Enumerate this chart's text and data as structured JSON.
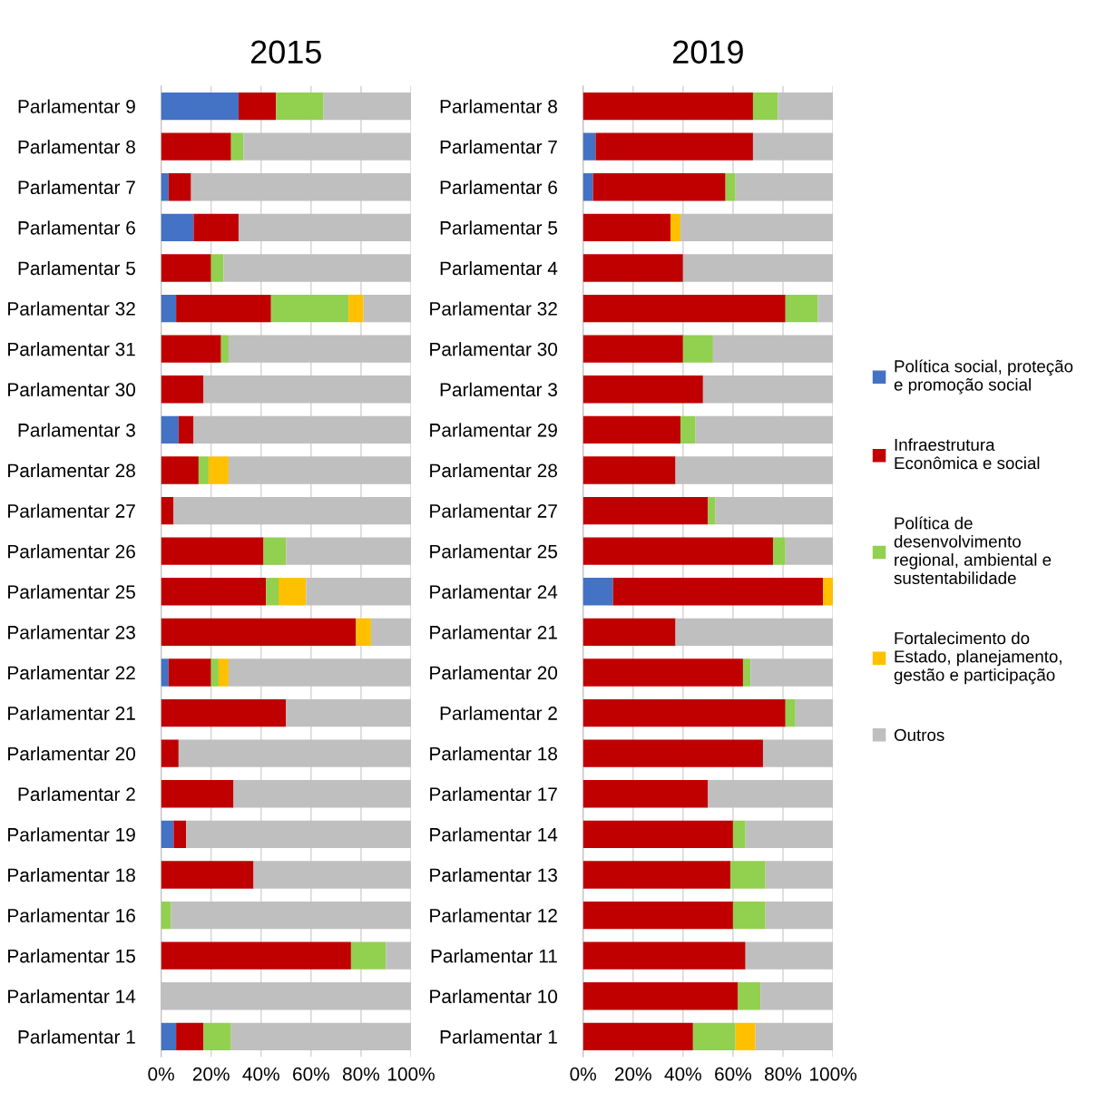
{
  "chart_data": [
    {
      "type": "bar",
      "orientation": "horizontal",
      "stacked": true,
      "title": "2015",
      "legend": false,
      "grid": "x",
      "categories": [
        "Parlamentar 9",
        "Parlamentar 8",
        "Parlamentar 7",
        "Parlamentar 6",
        "Parlamentar 5",
        "Parlamentar 32",
        "Parlamentar 31",
        "Parlamentar 30",
        "Parlamentar 3",
        "Parlamentar 28",
        "Parlamentar 27",
        "Parlamentar 26",
        "Parlamentar 25",
        "Parlamentar 23",
        "Parlamentar 22",
        "Parlamentar 21",
        "Parlamentar 20",
        "Parlamentar 2",
        "Parlamentar 19",
        "Parlamentar 18",
        "Parlamentar 16",
        "Parlamentar 15",
        "Parlamentar 14",
        "Parlamentar 1"
      ],
      "xlim": [
        0,
        100
      ],
      "xticks": [
        {
          "value": 0,
          "label": "0%"
        },
        {
          "value": 20,
          "label": "20%"
        },
        {
          "value": 40,
          "label": "40%"
        },
        {
          "value": 60,
          "label": "60%"
        },
        {
          "value": 80,
          "label": "80%"
        },
        {
          "value": 100,
          "label": "100%"
        }
      ],
      "series": [
        {
          "color": "#4472c4",
          "values": [
            31,
            null,
            3,
            13,
            null,
            6,
            null,
            null,
            7,
            null,
            null,
            null,
            null,
            null,
            3,
            null,
            null,
            null,
            5,
            null,
            null,
            null,
            null,
            6
          ]
        },
        {
          "color": "#c00000",
          "values": [
            15,
            28,
            9,
            18,
            20,
            38,
            24,
            17,
            6,
            15,
            5,
            41,
            42,
            78,
            17,
            50,
            7,
            29,
            5,
            37,
            null,
            76,
            null,
            11
          ]
        },
        {
          "color": "#92d050",
          "values": [
            19,
            5,
            null,
            null,
            5,
            31,
            3,
            null,
            null,
            4,
            null,
            9,
            5,
            null,
            3,
            null,
            null,
            null,
            null,
            null,
            4,
            14,
            null,
            11
          ]
        },
        {
          "color": "#ffc000",
          "values": [
            null,
            null,
            null,
            null,
            null,
            6,
            null,
            null,
            null,
            8,
            null,
            null,
            11,
            6,
            4,
            null,
            null,
            null,
            null,
            null,
            null,
            null,
            null,
            null
          ]
        },
        {
          "color": "#bfbfbf",
          "values": [
            35,
            67,
            88,
            69,
            75,
            19,
            73,
            83,
            87,
            73,
            95,
            50,
            42,
            16,
            73,
            50,
            93,
            71,
            90,
            63,
            96,
            10,
            100,
            72
          ]
        }
      ]
    },
    {
      "type": "bar",
      "orientation": "horizontal",
      "stacked": true,
      "title": "2019",
      "legend": "right",
      "grid": "x",
      "categories": [
        "Parlamentar 8",
        "Parlamentar 7",
        "Parlamentar 6",
        "Parlamentar 5",
        "Parlamentar 4",
        "Parlamentar 32",
        "Parlamentar 30",
        "Parlamentar 3",
        "Parlamentar 29",
        "Parlamentar 28",
        "Parlamentar 27",
        "Parlamentar 25",
        "Parlamentar 24",
        "Parlamentar 21",
        "Parlamentar 20",
        "Parlamentar 2",
        "Parlamentar 18",
        "Parlamentar 17",
        "Parlamentar 14",
        "Parlamentar 13",
        "Parlamentar 12",
        "Parlamentar 11",
        "Parlamentar 10",
        "Parlamentar 1"
      ],
      "xlim": [
        0,
        100
      ],
      "xticks": [
        {
          "value": 0,
          "label": "0%"
        },
        {
          "value": 20,
          "label": "20%"
        },
        {
          "value": 40,
          "label": "40%"
        },
        {
          "value": 60,
          "label": "60%"
        },
        {
          "value": 80,
          "label": "80%"
        },
        {
          "value": 100,
          "label": "100%"
        }
      ],
      "series": [
        {
          "name": "Política social, proteção\ne promoção social",
          "color": "#4472c4",
          "values": [
            null,
            5,
            4,
            null,
            null,
            null,
            null,
            null,
            null,
            null,
            null,
            null,
            12,
            null,
            null,
            null,
            null,
            null,
            null,
            null,
            null,
            null,
            null,
            null
          ]
        },
        {
          "name": "Infraestrutura\nEconômica e social",
          "color": "#c00000",
          "values": [
            68,
            63,
            53,
            35,
            40,
            81,
            40,
            48,
            39,
            37,
            50,
            76,
            84,
            37,
            64,
            81,
            72,
            50,
            60,
            59,
            60,
            65,
            62,
            44
          ]
        },
        {
          "name": "Política de\ndesenvolvimento\nregional, ambiental e\nsustentabilidade",
          "color": "#92d050",
          "values": [
            10,
            null,
            4,
            null,
            null,
            13,
            12,
            null,
            6,
            null,
            3,
            5,
            null,
            null,
            3,
            4,
            null,
            null,
            5,
            14,
            13,
            null,
            9,
            17
          ]
        },
        {
          "name": "Fortalecimento do\nEstado, planejamento,\ngestão e participação",
          "color": "#ffc000",
          "values": [
            null,
            null,
            null,
            4,
            null,
            null,
            null,
            null,
            null,
            null,
            null,
            null,
            4,
            null,
            null,
            null,
            null,
            null,
            null,
            null,
            null,
            null,
            null,
            8
          ]
        },
        {
          "name": "Outros",
          "color": "#bfbfbf",
          "values": [
            22,
            32,
            39,
            61,
            60,
            6,
            48,
            52,
            55,
            63,
            47,
            19,
            null,
            63,
            33,
            15,
            28,
            50,
            35,
            27,
            27,
            35,
            29,
            31
          ]
        }
      ]
    }
  ]
}
